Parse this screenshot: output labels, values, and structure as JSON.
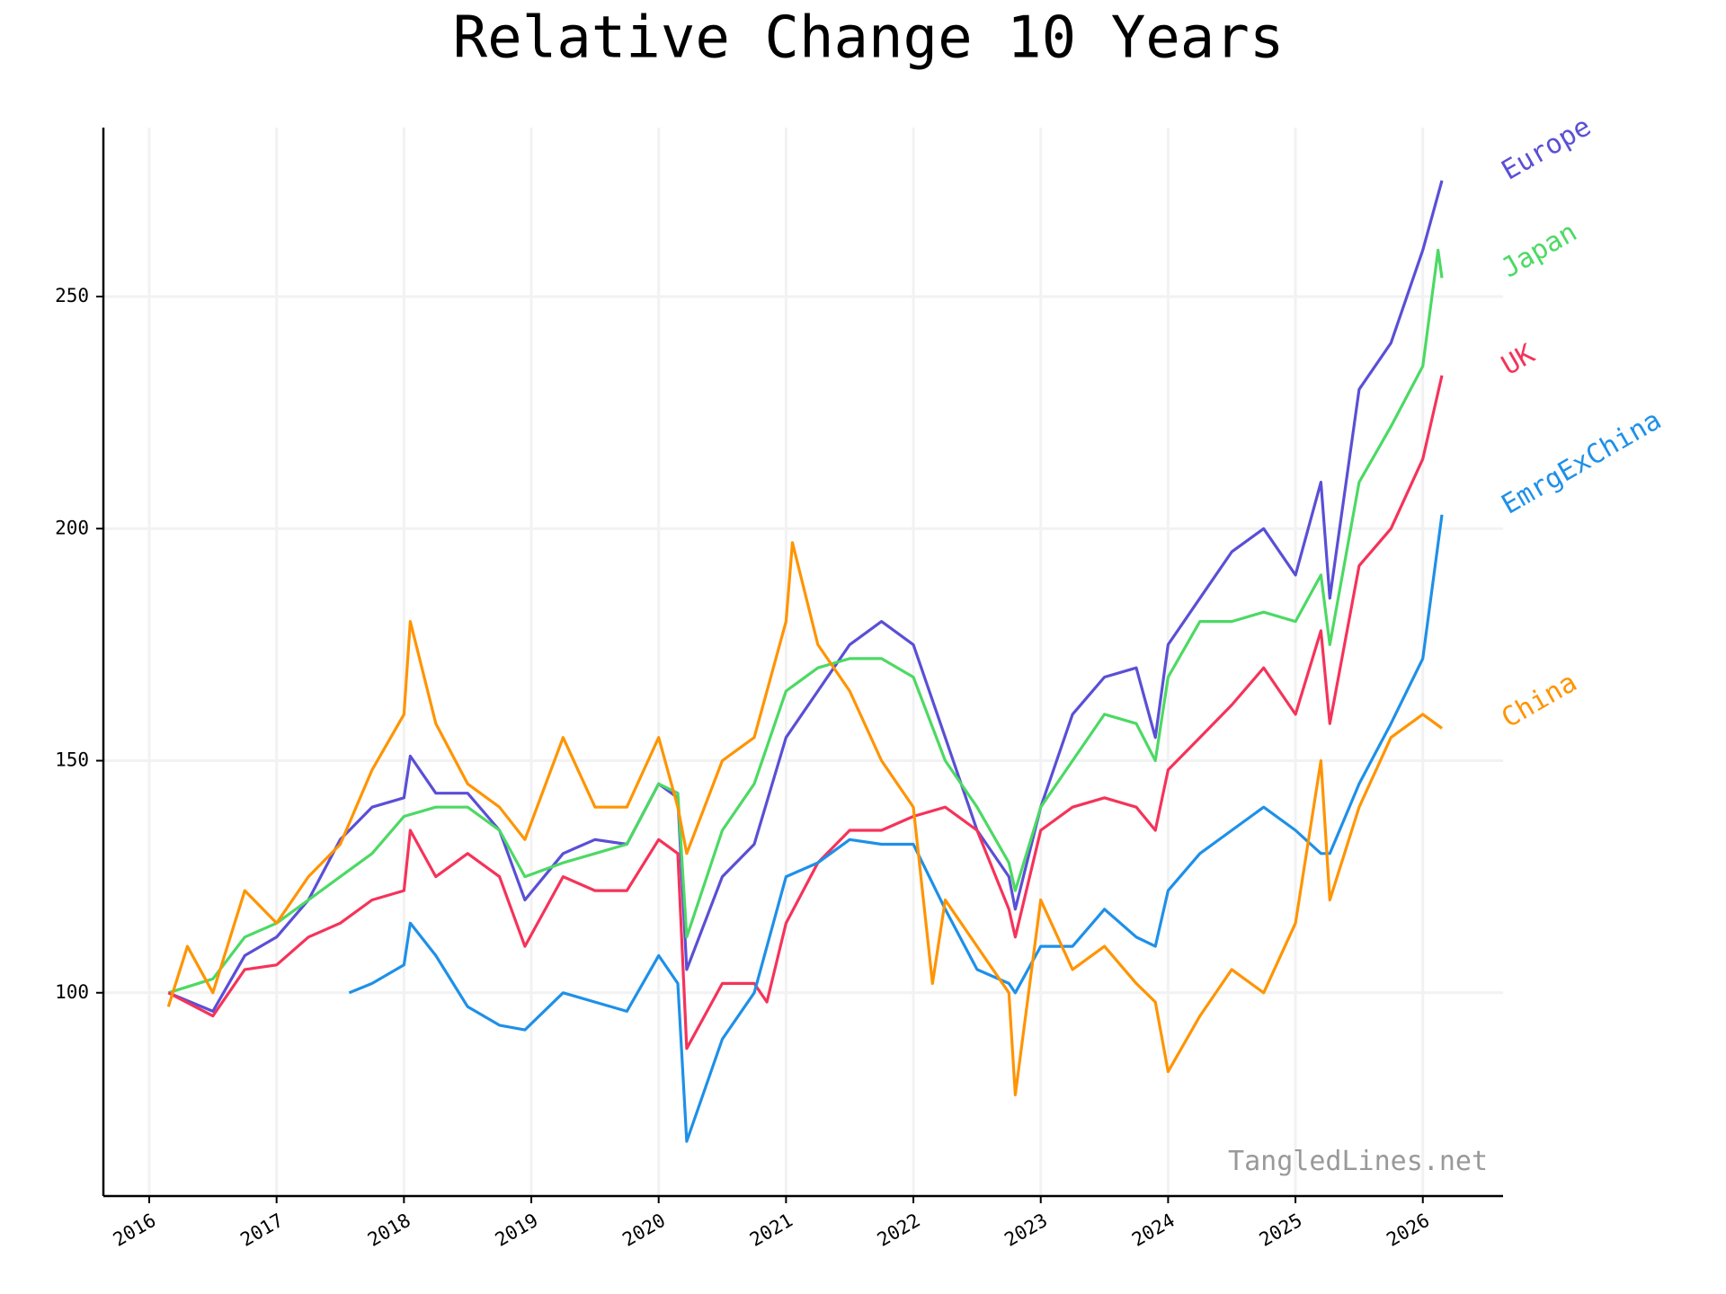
{
  "chart_data": {
    "type": "line",
    "title": "Relative Change 10 Years",
    "annotation": "TangledLines.net",
    "xlim": [
      2015.64,
      2026.63
    ],
    "ylim": [
      56.2,
      286.4
    ],
    "xticks": [
      2016,
      2017,
      2018,
      2019,
      2020,
      2021,
      2022,
      2023,
      2024,
      2025,
      2026
    ],
    "yticks": [
      100,
      150,
      200,
      250
    ],
    "grid": true,
    "series": [
      {
        "name": "Europe",
        "color": "#5a4fd6",
        "x": [
          2016.15,
          2016.5,
          2016.75,
          2017.0,
          2017.25,
          2017.5,
          2017.75,
          2018.0,
          2018.05,
          2018.25,
          2018.5,
          2018.75,
          2018.95,
          2019.25,
          2019.5,
          2019.75,
          2020.0,
          2020.15,
          2020.22,
          2020.5,
          2020.75,
          2021.0,
          2021.25,
          2021.5,
          2021.75,
          2022.0,
          2022.25,
          2022.5,
          2022.75,
          2022.8,
          2023.0,
          2023.25,
          2023.5,
          2023.75,
          2023.9,
          2024.0,
          2024.25,
          2024.5,
          2024.75,
          2025.0,
          2025.2,
          2025.27,
          2025.5,
          2025.75,
          2026.0,
          2026.15
        ],
        "values": [
          100,
          96,
          108,
          112,
          120,
          133,
          140,
          142,
          151,
          143,
          143,
          135,
          120,
          130,
          133,
          132,
          145,
          142,
          105,
          125,
          132,
          155,
          165,
          175,
          180,
          175,
          155,
          135,
          125,
          118,
          140,
          160,
          168,
          170,
          155,
          175,
          185,
          195,
          200,
          190,
          210,
          185,
          230,
          240,
          260,
          275
        ]
      },
      {
        "name": "Japan",
        "color": "#4cd964",
        "x": [
          2016.15,
          2016.5,
          2016.75,
          2017.0,
          2017.25,
          2017.5,
          2017.75,
          2018.0,
          2018.25,
          2018.5,
          2018.75,
          2018.95,
          2019.25,
          2019.5,
          2019.75,
          2020.0,
          2020.15,
          2020.22,
          2020.5,
          2020.75,
          2021.0,
          2021.25,
          2021.5,
          2021.75,
          2022.0,
          2022.25,
          2022.5,
          2022.75,
          2022.8,
          2023.0,
          2023.25,
          2023.5,
          2023.75,
          2023.9,
          2024.0,
          2024.25,
          2024.5,
          2024.75,
          2025.0,
          2025.2,
          2025.27,
          2025.5,
          2025.75,
          2026.0,
          2026.12,
          2026.15
        ],
        "values": [
          100,
          103,
          112,
          115,
          120,
          125,
          130,
          138,
          140,
          140,
          135,
          125,
          128,
          130,
          132,
          145,
          143,
          112,
          135,
          145,
          165,
          170,
          172,
          172,
          168,
          150,
          140,
          128,
          122,
          140,
          150,
          160,
          158,
          150,
          168,
          180,
          180,
          182,
          180,
          190,
          175,
          210,
          222,
          235,
          260,
          254
        ]
      },
      {
        "name": "UK",
        "color": "#f5335a",
        "x": [
          2016.15,
          2016.5,
          2016.75,
          2017.0,
          2017.25,
          2017.5,
          2017.75,
          2018.0,
          2018.05,
          2018.25,
          2018.5,
          2018.75,
          2018.95,
          2019.25,
          2019.5,
          2019.75,
          2020.0,
          2020.15,
          2020.22,
          2020.5,
          2020.75,
          2020.85,
          2021.0,
          2021.25,
          2021.5,
          2021.75,
          2022.0,
          2022.25,
          2022.5,
          2022.75,
          2022.8,
          2023.0,
          2023.25,
          2023.5,
          2023.75,
          2023.9,
          2024.0,
          2024.25,
          2024.5,
          2024.75,
          2025.0,
          2025.2,
          2025.27,
          2025.5,
          2025.75,
          2026.0,
          2026.15
        ],
        "values": [
          100,
          95,
          105,
          106,
          112,
          115,
          120,
          122,
          135,
          125,
          130,
          125,
          110,
          125,
          122,
          122,
          133,
          130,
          88,
          102,
          102,
          98,
          115,
          128,
          135,
          135,
          138,
          140,
          135,
          118,
          112,
          135,
          140,
          142,
          140,
          135,
          148,
          155,
          162,
          170,
          160,
          178,
          158,
          192,
          200,
          215,
          233
        ]
      },
      {
        "name": "EmrgExChina",
        "color": "#1e90e8",
        "x": [
          2017.57,
          2017.75,
          2018.0,
          2018.05,
          2018.25,
          2018.5,
          2018.75,
          2018.95,
          2019.25,
          2019.5,
          2019.75,
          2020.0,
          2020.15,
          2020.22,
          2020.5,
          2020.75,
          2021.0,
          2021.25,
          2021.5,
          2021.75,
          2022.0,
          2022.25,
          2022.5,
          2022.75,
          2022.8,
          2023.0,
          2023.25,
          2023.5,
          2023.75,
          2023.9,
          2024.0,
          2024.25,
          2024.5,
          2024.75,
          2025.0,
          2025.2,
          2025.27,
          2025.5,
          2025.75,
          2026.0,
          2026.15
        ],
        "values": [
          100,
          102,
          106,
          115,
          108,
          97,
          93,
          92,
          100,
          98,
          96,
          108,
          102,
          68,
          90,
          100,
          125,
          128,
          133,
          132,
          132,
          118,
          105,
          102,
          100,
          110,
          110,
          118,
          112,
          110,
          122,
          130,
          135,
          140,
          135,
          130,
          130,
          145,
          158,
          172,
          203
        ]
      },
      {
        "name": "China",
        "color": "#ff9400",
        "x": [
          2016.15,
          2016.3,
          2016.5,
          2016.75,
          2017.0,
          2017.25,
          2017.5,
          2017.75,
          2018.0,
          2018.05,
          2018.25,
          2018.5,
          2018.75,
          2018.95,
          2019.25,
          2019.5,
          2019.75,
          2020.0,
          2020.15,
          2020.22,
          2020.5,
          2020.75,
          2021.0,
          2021.05,
          2021.25,
          2021.5,
          2021.75,
          2022.0,
          2022.15,
          2022.25,
          2022.5,
          2022.75,
          2022.8,
          2023.0,
          2023.25,
          2023.5,
          2023.75,
          2023.9,
          2024.0,
          2024.25,
          2024.5,
          2024.75,
          2025.0,
          2025.2,
          2025.27,
          2025.5,
          2025.75,
          2026.0,
          2026.15
        ],
        "values": [
          97,
          110,
          100,
          122,
          115,
          125,
          132,
          148,
          160,
          180,
          158,
          145,
          140,
          133,
          155,
          140,
          140,
          155,
          140,
          130,
          150,
          155,
          180,
          197,
          175,
          165,
          150,
          140,
          102,
          120,
          110,
          100,
          78,
          120,
          105,
          110,
          102,
          98,
          83,
          95,
          105,
          100,
          115,
          150,
          120,
          140,
          155,
          160,
          157
        ]
      }
    ]
  }
}
